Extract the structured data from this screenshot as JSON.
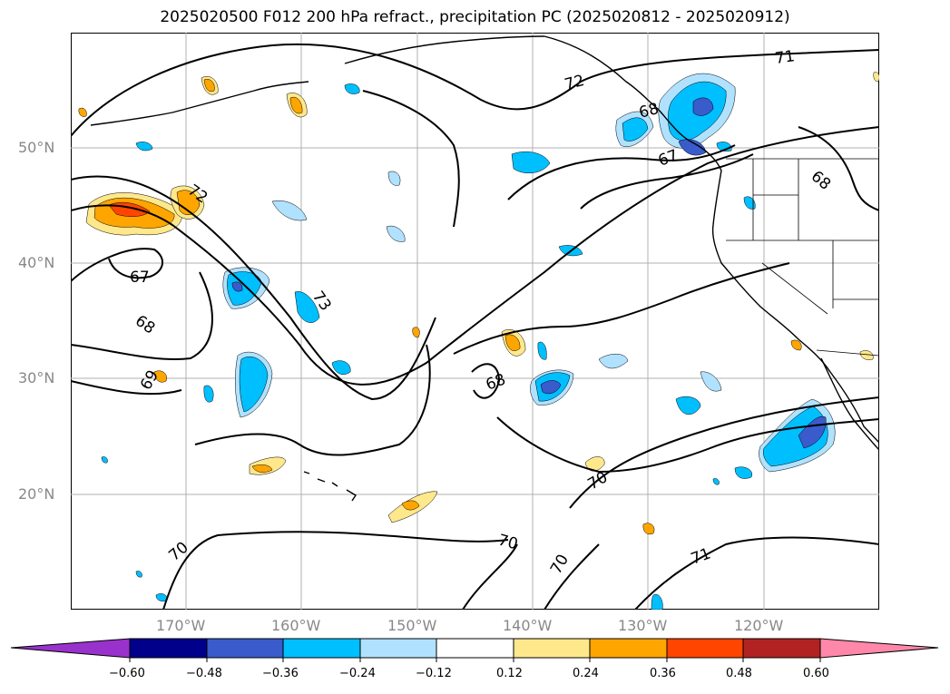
{
  "title": "2025020500 F012 200 hPa refract., precipitation PC (2025020812 - 2025020912)",
  "axes": {
    "lat_labels": [
      "50°N",
      "40°N",
      "30°N",
      "20°N"
    ],
    "lon_labels": [
      "170°W",
      "160°W",
      "150°W",
      "140°W",
      "130°W",
      "120°W"
    ]
  },
  "contour_labels": [
    "71",
    "72",
    "72",
    "67",
    "68",
    "67",
    "68",
    "73",
    "68",
    "69",
    "68",
    "70",
    "70",
    "70",
    "70",
    "71"
  ],
  "colorbar": {
    "tick_labels": [
      "−0.60",
      "−0.48",
      "−0.36",
      "−0.24",
      "−0.12",
      "0.12",
      "0.24",
      "0.36",
      "0.48",
      "0.60"
    ],
    "colors": [
      "#9932CC",
      "#00008B",
      "#3A5BCC",
      "#00BFFF",
      "#B0E2FF",
      "#FFFFFF",
      "#FFE88C",
      "#FFA500",
      "#FF4500",
      "#B22222",
      "#FF88AA"
    ]
  }
}
